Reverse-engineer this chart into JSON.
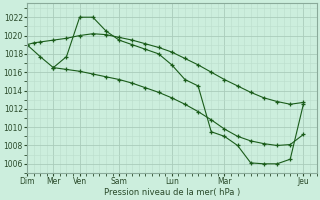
{
  "bg_color": "#cceedd",
  "grid_color_major": "#aaccbb",
  "grid_color_minor": "#bbddcc",
  "line_color": "#1a5c1a",
  "xlabel": "Pression niveau de la mer( hPa )",
  "ylim": [
    1005,
    1023.5
  ],
  "yticks": [
    1006,
    1008,
    1010,
    1012,
    1014,
    1016,
    1018,
    1020,
    1022
  ],
  "xtick_labels": [
    "Dim",
    "Mer",
    "Ven",
    "Sam",
    "Lun",
    "Mar",
    "Jeu"
  ],
  "xtick_positions": [
    0,
    2,
    4,
    7,
    11,
    15,
    21
  ],
  "xlim": [
    0,
    22
  ],
  "series1_x": [
    0,
    0.5,
    1,
    2,
    3,
    4,
    5,
    6,
    7,
    8,
    9,
    10,
    11,
    12,
    13,
    14,
    15,
    16,
    17,
    18,
    19,
    20,
    21
  ],
  "series1_y": [
    1019,
    1019.2,
    1019.3,
    1019.5,
    1019.7,
    1020,
    1020.2,
    1020.1,
    1019.8,
    1019.5,
    1019.1,
    1018.7,
    1018.2,
    1017.5,
    1016.8,
    1016,
    1015.2,
    1014.5,
    1013.8,
    1013.2,
    1012.8,
    1012.5,
    1012.7
  ],
  "series2_x": [
    0,
    1,
    2,
    3,
    4,
    5,
    6,
    7,
    8,
    9,
    10,
    11,
    12,
    13,
    14,
    15,
    16,
    17,
    18,
    19,
    20,
    21
  ],
  "series2_y": [
    1019,
    1017.7,
    1016.5,
    1016.3,
    1016.1,
    1015.8,
    1015.5,
    1015.2,
    1014.8,
    1014.3,
    1013.8,
    1013.2,
    1012.5,
    1011.7,
    1010.8,
    1009.8,
    1009.0,
    1008.5,
    1008.2,
    1008.0,
    1008.1,
    1009.2
  ],
  "series3_x": [
    2,
    3,
    4,
    5,
    6,
    7,
    8,
    9,
    10,
    11,
    12,
    13,
    14,
    15,
    16,
    17,
    18,
    19,
    20,
    21
  ],
  "series3_y": [
    1016.5,
    1017.7,
    1022.0,
    1022.0,
    1020.5,
    1019.5,
    1019.0,
    1018.5,
    1018.0,
    1016.8,
    1015.2,
    1014.5,
    1009.5,
    1009.0,
    1008.0,
    1006.1,
    1006.0,
    1006.0,
    1006.5,
    1012.5
  ]
}
